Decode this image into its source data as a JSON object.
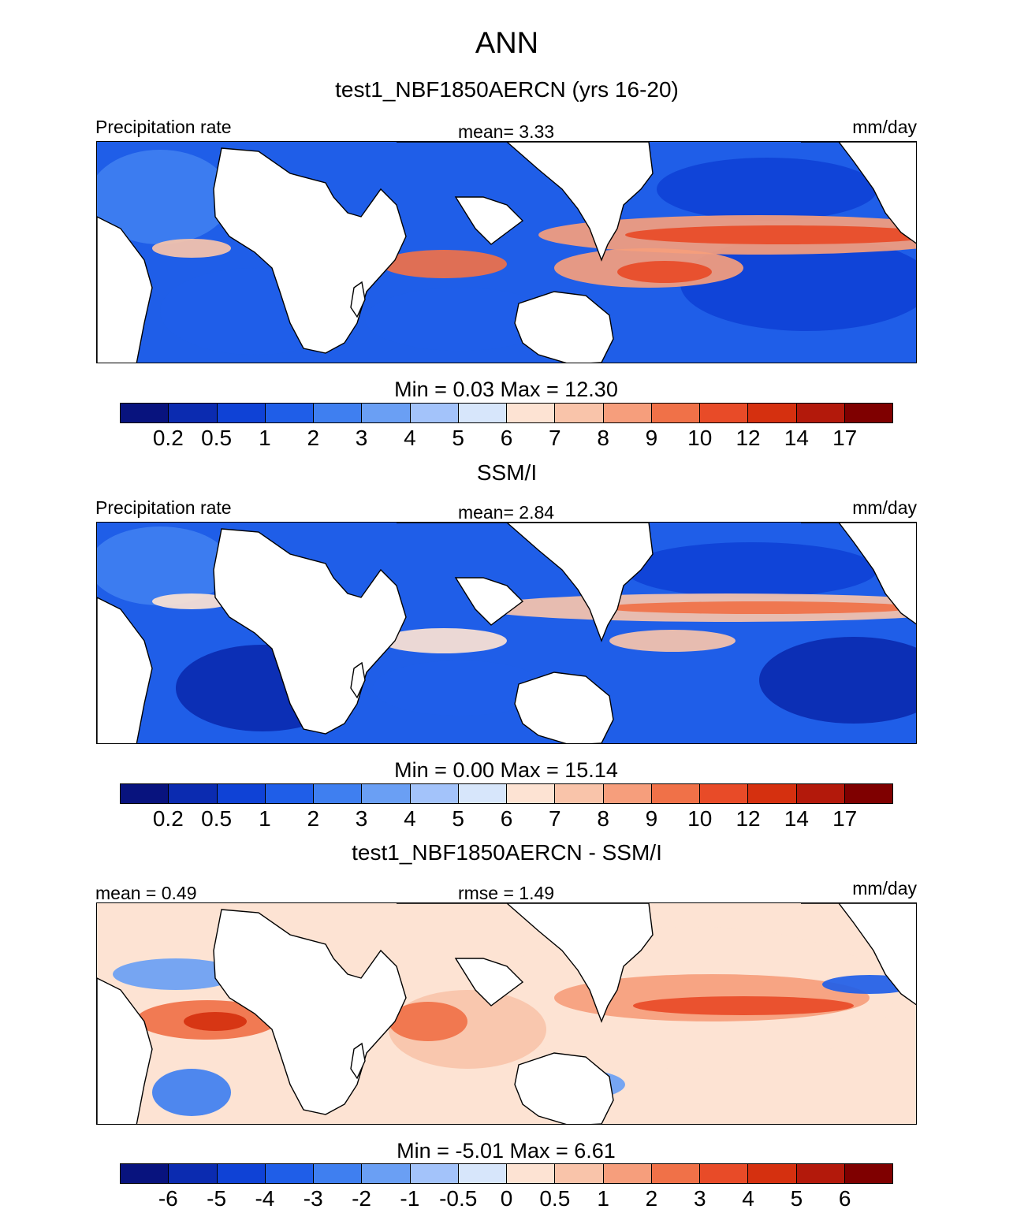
{
  "figure_title": "ANN",
  "colors": {
    "abs_scale": [
      "#08137e",
      "#0b2bb0",
      "#0f42d6",
      "#1f5ee8",
      "#3f7ff0",
      "#6a9ff4",
      "#a3c3fa",
      "#d7e6fb",
      "#fde3d3",
      "#f9c4aa",
      "#f69e7c",
      "#f07148",
      "#e84b28",
      "#d5300f",
      "#b3190b",
      "#7f0000"
    ],
    "diff_scale": [
      "#08137e",
      "#0b2bb0",
      "#0f42d6",
      "#1f5ee8",
      "#3f7ff0",
      "#6a9ff4",
      "#a3c3fa",
      "#d7e6fb",
      "#fde3d3",
      "#f9c4aa",
      "#f69e7c",
      "#f07148",
      "#e84b28",
      "#d5300f",
      "#b3190b",
      "#7f0000"
    ],
    "land": "#ffffff",
    "coast": "#000000"
  },
  "panels": [
    {
      "title": "test1_NBF1850AERCN (yrs 16-20)",
      "left_label": "Precipitation rate",
      "center_label": "mean=   3.33",
      "right_label": "mm/day",
      "minmax": "Min =    0.03 Max =   12.30",
      "ticks": [
        "0.2",
        "0.5",
        "1",
        "2",
        "3",
        "4",
        "5",
        "6",
        "7",
        "8",
        "9",
        "10",
        "12",
        "14",
        "17"
      ],
      "scale": "abs_scale"
    },
    {
      "title": "SSM/I",
      "left_label": "Precipitation rate",
      "center_label": "mean=   2.84",
      "right_label": "mm/day",
      "minmax": "Min =    0.00 Max =   15.14",
      "ticks": [
        "0.2",
        "0.5",
        "1",
        "2",
        "3",
        "4",
        "5",
        "6",
        "7",
        "8",
        "9",
        "10",
        "12",
        "14",
        "17"
      ],
      "scale": "abs_scale"
    },
    {
      "title": "test1_NBF1850AERCN - SSM/I",
      "left_label": "mean =   0.49",
      "center_label": "rmse =   1.49",
      "right_label": "mm/day",
      "minmax": "Min =  -5.01 Max =    6.61",
      "ticks": [
        "-6",
        "-5",
        "-4",
        "-3",
        "-2",
        "-1",
        "-0.5",
        "0",
        "0.5",
        "1",
        "2",
        "3",
        "4",
        "5",
        "6"
      ],
      "scale": "diff_scale"
    }
  ]
}
